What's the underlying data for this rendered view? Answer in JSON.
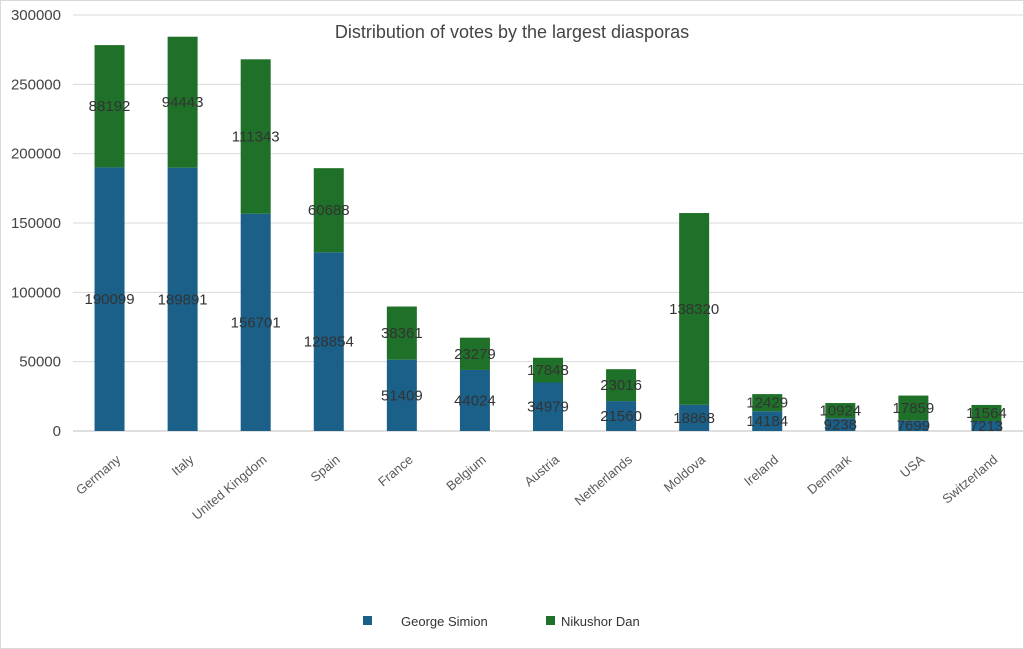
{
  "chart_data": {
    "type": "bar",
    "stacked": true,
    "title": "Distribution of votes by the largest diasporas",
    "categories": [
      "Germany",
      "Italy",
      "United Kingdom",
      "Spain",
      "France",
      "Belgium",
      "Austria",
      "Netherlands",
      "Moldova",
      "Ireland",
      "Denmark",
      "USA",
      "Switzerland"
    ],
    "series": [
      {
        "name": "George Simion",
        "color": "#1a6089",
        "values": [
          190099,
          189891,
          156701,
          128854,
          51409,
          44024,
          34979,
          21560,
          18868,
          14184,
          9238,
          7699,
          7213
        ],
        "labels": [
          "190099",
          "189891",
          "156701",
          "128854",
          "51409",
          "44024",
          "34979",
          "21560",
          "18868",
          "14184",
          "9238",
          "7699",
          "7213"
        ]
      },
      {
        "name": "Nikushor Dan",
        "color": "#1f7028",
        "values": [
          88192,
          94443,
          111343,
          60688,
          38361,
          23279,
          17848,
          23016,
          138320,
          12429,
          10924,
          17859,
          11564
        ],
        "labels": [
          "88192",
          "94443",
          "111343",
          "60688",
          "38361",
          "23279",
          "17848",
          "23016",
          "138320",
          "12429",
          "10924",
          "17859",
          "11564"
        ]
      }
    ],
    "xlabel": "",
    "ylabel": "",
    "ylim": [
      0,
      300000
    ],
    "yticks": [
      0,
      50000,
      100000,
      150000,
      200000,
      250000,
      300000
    ],
    "ytick_labels": [
      "0",
      "50000",
      "100000",
      "150000",
      "200000",
      "250000",
      "300000"
    ],
    "grid": true,
    "legend_position": "bottom"
  }
}
